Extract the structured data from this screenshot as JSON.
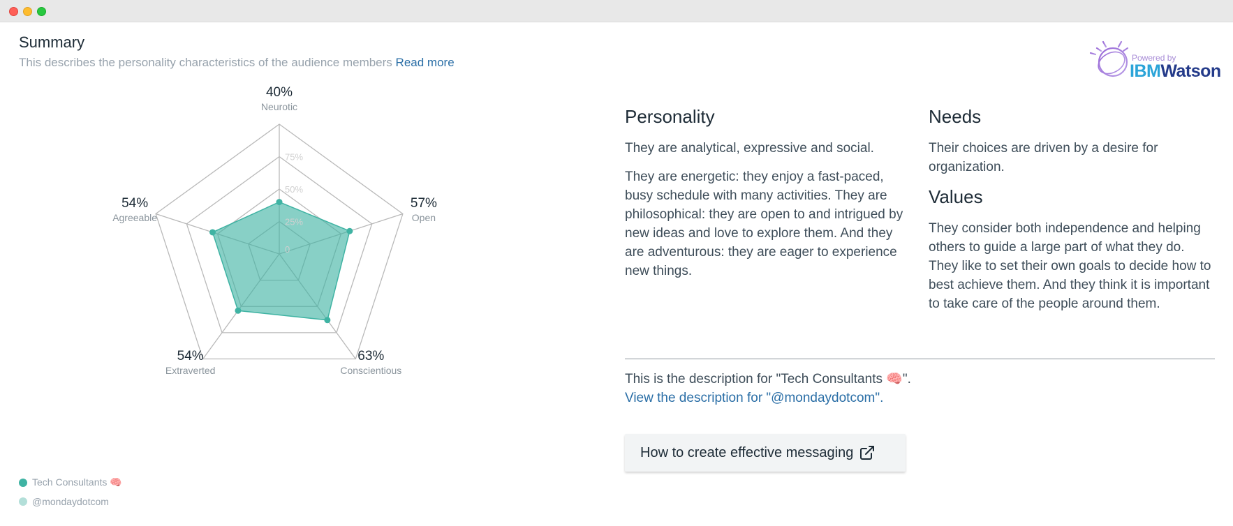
{
  "window": {
    "controls": [
      "close",
      "minimize",
      "maximize"
    ]
  },
  "header": {
    "title": "Summary",
    "subtitle": "This describes the personality characteristics of the audience members",
    "read_more": "Read more"
  },
  "branding": {
    "powered_by": "Powered by",
    "ibm": "IBM",
    "watson": "Watson"
  },
  "chart_data": {
    "type": "radar",
    "axes": [
      {
        "name": "Neurotic",
        "label": "40%",
        "value": 0.4
      },
      {
        "name": "Open",
        "label": "57%",
        "value": 0.57
      },
      {
        "name": "Conscientious",
        "label": "63%",
        "value": 0.63
      },
      {
        "name": "Extraverted",
        "label": "54%",
        "value": 0.54
      },
      {
        "name": "Agreeable",
        "label": "54%",
        "value": 0.54
      }
    ],
    "rings": [
      "0",
      "25%",
      "50%",
      "75%"
    ],
    "ring_values": [
      0.25,
      0.5,
      0.75,
      1.0
    ],
    "series": [
      {
        "name": "Tech Consultants 🧠",
        "color": "#3fb3a3",
        "values": [
          0.4,
          0.57,
          0.63,
          0.54,
          0.54
        ]
      }
    ]
  },
  "legend": [
    {
      "label": "Tech Consultants 🧠",
      "color": "#3fb3a3"
    },
    {
      "label": "@mondaydotcom",
      "color": "#b3dfd9"
    }
  ],
  "personality": {
    "title": "Personality",
    "paragraphs": [
      "They are analytical, expressive and social.",
      "They are energetic: they enjoy a fast-paced, busy schedule with many activities. They are philosophical: they are open to and intrigued by new ideas and love to explore them. And they are adventurous: they are eager to experience new things."
    ]
  },
  "needs": {
    "title": "Needs",
    "text": "Their choices are driven by a desire for organization."
  },
  "values": {
    "title": "Values",
    "text": "They consider both independence and helping others to guide a large part of what they do. They like to set their own goals to decide how to best achieve them. And they think it is important to take care of the people around them."
  },
  "description": {
    "current": "This is the description for \"Tech Consultants 🧠\".",
    "link": "View the description for \"@mondaydotcom\"."
  },
  "cta": {
    "label": "How to create effective messaging",
    "icon": "external-link-icon"
  }
}
